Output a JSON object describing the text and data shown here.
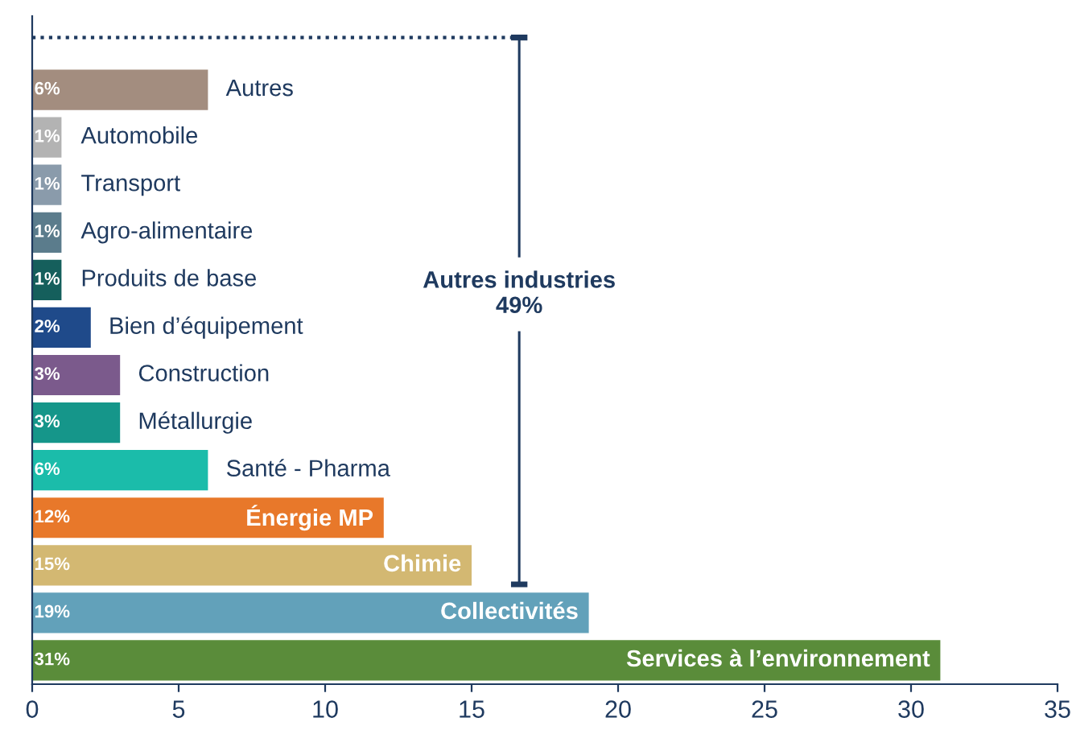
{
  "chart_data": {
    "type": "bar",
    "orientation": "horizontal",
    "categories": [
      "Autres",
      "Automobile",
      "Transport",
      "Agro-alimentaire",
      "Produits de base",
      "Bien d’équipement",
      "Construction",
      "Métallurgie",
      "Santé - Pharma",
      "Énergie MP",
      "Chimie",
      "Collectivités",
      "Services à l’environnement"
    ],
    "values": [
      6,
      1,
      1,
      1,
      1,
      2,
      3,
      3,
      6,
      12,
      15,
      19,
      31
    ],
    "value_labels": [
      "6%",
      "1%",
      "1%",
      "1%",
      "1%",
      "2%",
      "3%",
      "3%",
      "6%",
      "12%",
      "15%",
      "19%",
      "31%"
    ],
    "colors": [
      "#a38d7f",
      "#b3b3b3",
      "#8a9bab",
      "#5b7c8c",
      "#155f5c",
      "#1f4a8a",
      "#7b5a8c",
      "#15968a",
      "#1bbcaa",
      "#e8782a",
      "#d3b872",
      "#62a1ba",
      "#5a8c3a"
    ],
    "xlim": [
      0,
      35
    ],
    "xticks": [
      0,
      5,
      10,
      15,
      20,
      25,
      30,
      35
    ],
    "annotations": [
      "Autres industries\n49%"
    ],
    "grid": false,
    "legend": false
  }
}
